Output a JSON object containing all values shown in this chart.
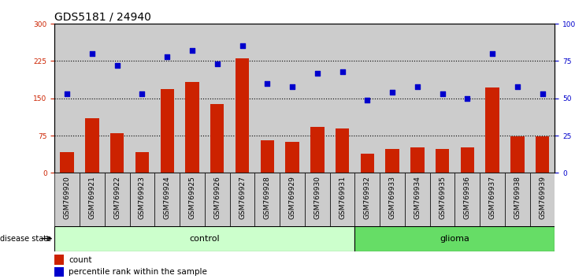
{
  "title": "GDS5181 / 24940",
  "samples": [
    "GSM769920",
    "GSM769921",
    "GSM769922",
    "GSM769923",
    "GSM769924",
    "GSM769925",
    "GSM769926",
    "GSM769927",
    "GSM769928",
    "GSM769929",
    "GSM769930",
    "GSM769931",
    "GSM769932",
    "GSM769933",
    "GSM769934",
    "GSM769935",
    "GSM769936",
    "GSM769937",
    "GSM769938",
    "GSM769939"
  ],
  "counts": [
    42,
    110,
    80,
    42,
    168,
    183,
    138,
    230,
    65,
    63,
    93,
    90,
    38,
    48,
    52,
    48,
    52,
    172,
    73,
    73
  ],
  "percentiles": [
    53,
    80,
    72,
    53,
    78,
    82,
    73,
    85,
    60,
    58,
    67,
    68,
    49,
    54,
    58,
    53,
    50,
    80,
    58,
    53
  ],
  "control_count": 12,
  "glioma_count": 8,
  "bar_color": "#cc2200",
  "dot_color": "#0000cc",
  "left_ylim": [
    0,
    300
  ],
  "right_ylim": [
    0,
    100
  ],
  "left_yticks": [
    0,
    75,
    150,
    225,
    300
  ],
  "right_yticks": [
    0,
    25,
    50,
    75,
    100
  ],
  "right_yticklabels": [
    "0",
    "25",
    "50",
    "75",
    "100%"
  ],
  "hline_values": [
    75,
    150,
    225
  ],
  "control_label": "control",
  "glioma_label": "glioma",
  "disease_state_label": "disease state",
  "legend_count_label": "count",
  "legend_pct_label": "percentile rank within the sample",
  "control_bg": "#ccffcc",
  "glioma_bg": "#66dd66",
  "column_bg": "#cccccc",
  "plot_bg": "#ffffff",
  "title_fontsize": 10,
  "tick_fontsize": 6.5,
  "bar_width": 0.55
}
